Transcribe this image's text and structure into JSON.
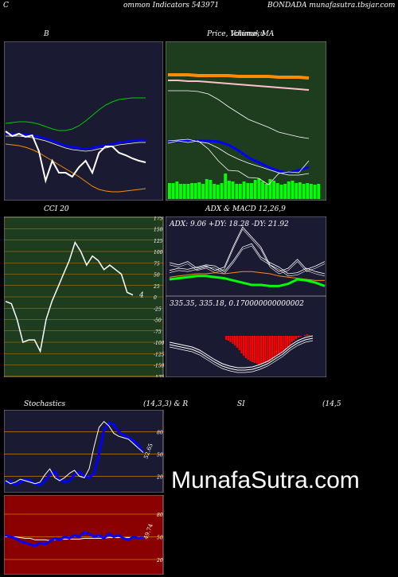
{
  "header": {
    "left_letter": "C",
    "title": "ommon  Indicators 543971",
    "site": "BONDADA munafasutra.tbsjar.com"
  },
  "watermark": "MunafaSutra.com",
  "colors": {
    "background": "#000000",
    "navy_panel": "#1a1a33",
    "green_panel": "#1e3d1e",
    "red_panel": "#8b0000",
    "white": "#ffffff",
    "blue": "#0000ff",
    "orange": "#ff8c00",
    "green_line": "#00cc00",
    "bright_green": "#00ff00",
    "red": "#ff0000",
    "grid_orange": "#cc7a00"
  },
  "panels": {
    "bollinger": {
      "label": "B",
      "chart_data": {
        "type": "line",
        "series": [
          {
            "color": "#00cc00",
            "values": [
              103,
              102,
              101,
              101,
              102,
              104,
              107,
              110,
              112,
              112,
              110,
              106,
              100,
              93,
              86,
              80,
              76,
              73,
              72,
              71,
              71,
              71
            ]
          },
          {
            "color": "#0000ff",
            "values": [
              116,
              116,
              116,
              117,
              118,
              120,
              122,
              125,
              128,
              131,
              133,
              134,
              135,
              134,
              132,
              131,
              129,
              127,
              126,
              125,
              124,
              124
            ]
          },
          {
            "color": "#ff8c00",
            "values": [
              129,
              130,
              131,
              133,
              136,
              140,
              145,
              150,
              155,
              160,
              165,
              170,
              176,
              182,
              186,
              188,
              189,
              189,
              188,
              187,
              186,
              185
            ]
          },
          {
            "color": "#ffffff",
            "values": [
              113,
              119,
              116,
              120,
              118,
              138,
              175,
              150,
              165,
              165,
              170,
              158,
              150,
              165,
              140,
              132,
              132,
              140,
              143,
              147,
              150,
              152
            ]
          }
        ]
      }
    },
    "price_ma": {
      "label": "Price,  Volume,  MA",
      "label_overlay": "Ichimoku",
      "chart_data": {
        "type": "line",
        "series": [
          {
            "color": "#ff8c00",
            "values": [
              42,
              42,
              42,
              43,
              43,
              43,
              43,
              44,
              44,
              44,
              44,
              45,
              45,
              45,
              46
            ]
          },
          {
            "color": "#ffc0cb",
            "values": [
              49,
              49,
              50,
              50,
              51,
              52,
              53,
              54,
              55,
              56,
              57,
              58,
              59,
              60,
              61
            ]
          },
          {
            "color": "#ffffff",
            "values": [
              62,
              62,
              62,
              63,
              66,
              73,
              82,
              90,
              98,
              103,
              108,
              114,
              117,
              120,
              122
            ]
          },
          {
            "color": "#0000ff",
            "values": [
              125,
              125,
              125,
              125,
              125,
              126,
              130,
              137,
              146,
              152,
              158,
              163,
              165,
              162,
              158
            ]
          },
          {
            "color": "#ffffff",
            "values": [
              125,
              124,
              123,
              126,
              128,
              134,
              142,
              148,
              153,
              157,
              161,
              165,
              168,
              168,
              166
            ]
          },
          {
            "color": "#ffffff",
            "values": [
              128,
              125,
              127,
              125,
              135,
              150,
              162,
              163,
              171,
              172,
              180,
              166,
              164,
              165,
              150
            ]
          }
        ],
        "volume": [
          20,
          20,
          22,
          19,
          19,
          19,
          20,
          20,
          21,
          19,
          25,
          24,
          19,
          18,
          20,
          32,
          23,
          22,
          19,
          19,
          22,
          20,
          20,
          24,
          26,
          22,
          19,
          25,
          23,
          20,
          18,
          19,
          22,
          23,
          20,
          21,
          19,
          20,
          19,
          18,
          19
        ]
      }
    },
    "cci": {
      "label": "CCI 20",
      "current_value": "4",
      "ticks": [
        "175",
        "150",
        "125",
        "100",
        "75",
        "50",
        "25",
        "0",
        "-25",
        "-50",
        "-75",
        "-100",
        "-125",
        "-150",
        "-175"
      ],
      "chart_data": {
        "type": "line",
        "ylim": [
          -175,
          175
        ],
        "values": [
          -10,
          -15,
          -50,
          -100,
          -95,
          -95,
          -120,
          -50,
          -10,
          20,
          50,
          80,
          120,
          100,
          70,
          90,
          80,
          60,
          70,
          60,
          50,
          10,
          4
        ]
      }
    },
    "adx_macd": {
      "label": "ADX  & MACD 12,26,9",
      "adx_text": "ADX: 9.06  +DY: 18.28  -DY: 21.92",
      "macd_text": "335.35,  335.18,  0.170000000000002",
      "adx_chart": {
        "type": "line",
        "series": [
          {
            "color": "#ffffff",
            "values": [
              30,
              28,
              31,
              25,
              27,
              23,
              26,
              45,
              62,
              53,
              44,
              28,
              22,
              25,
              33,
              24,
              27,
              31
            ]
          },
          {
            "color": "#ffffff",
            "values": [
              23,
              25,
              24,
              26,
              28,
              27,
              22,
              32,
              44,
              47,
              35,
              30,
              26,
              20,
              21,
              25,
              22,
              20
            ]
          },
          {
            "color": "#ff8c00",
            "values": [
              17,
              18,
              19,
              20,
              20,
              21,
              20,
              21,
              22,
              22,
              21,
              20,
              18,
              17,
              16,
              15,
              14,
              14
            ]
          },
          {
            "color": "#00ff00",
            "values": [
              15,
              16,
              17,
              18,
              18,
              17,
              16,
              14,
              12,
              10,
              10,
              9,
              9,
              11,
              15,
              14,
              12,
              9
            ]
          }
        ]
      },
      "macd_chart": {
        "type": "bar",
        "histogram": [
          -5,
          -6,
          -8,
          -10,
          -12,
          -15,
          -18,
          -22,
          -25,
          -28,
          -30,
          -32,
          -33,
          -34,
          -35,
          -36,
          -36,
          -35,
          -34,
          -33,
          -32,
          -30,
          -28,
          -26,
          -24,
          -22,
          -20,
          -17,
          -14,
          -11,
          -8,
          -6,
          -4,
          -2,
          -1,
          0,
          1,
          2,
          1,
          0
        ]
      }
    },
    "stochastics": {
      "label_left": "Stochastics",
      "label_params": "(14,3,3) & R",
      "current_value": "52.65",
      "ticks": [
        "80",
        "50",
        "20"
      ],
      "chart_data": {
        "type": "line",
        "ylim": [
          0,
          100
        ],
        "series": [
          {
            "color": "#0000ff",
            "values": [
              10,
              14,
              8,
              12,
              16,
              14,
              10,
              8,
              14,
              22,
              26,
              16,
              12,
              14,
              22,
              26,
              20,
              18,
              24,
              50,
              82,
              92,
              90,
              80,
              76,
              72,
              68,
              62,
              52
            ]
          },
          {
            "color": "#ffffff",
            "values": [
              14,
              10,
              12,
              16,
              14,
              12,
              10,
              12,
              22,
              30,
              18,
              14,
              18,
              24,
              28,
              20,
              18,
              30,
              60,
              86,
              94,
              88,
              78,
              74,
              72,
              70,
              64,
              58,
              52
            ]
          }
        ]
      }
    },
    "rsi": {
      "label_left": "SI",
      "label_params": "(14,5",
      "current_value": "49.74",
      "ticks": [
        "80",
        "50",
        "20"
      ],
      "chart_data": {
        "type": "line",
        "ylim": [
          0,
          100
        ],
        "series": [
          {
            "color": "#ffffff",
            "values": [
              50,
              50,
              50,
              49,
              48,
              48,
              46,
              46,
              46,
              45,
              46,
              47,
              47,
              47,
              47,
              47,
              48,
              48,
              48,
              48,
              48,
              49,
              49,
              49,
              49,
              49,
              49,
              49,
              50
            ]
          },
          {
            "color": "#0000ff",
            "values": [
              52,
              50,
              48,
              44,
              42,
              40,
              38,
              42,
              40,
              44,
              48,
              46,
              50,
              48,
              52,
              50,
              56,
              54,
              50,
              52,
              48,
              54,
              50,
              52,
              48,
              46,
              50,
              48,
              49
            ]
          }
        ]
      }
    }
  }
}
